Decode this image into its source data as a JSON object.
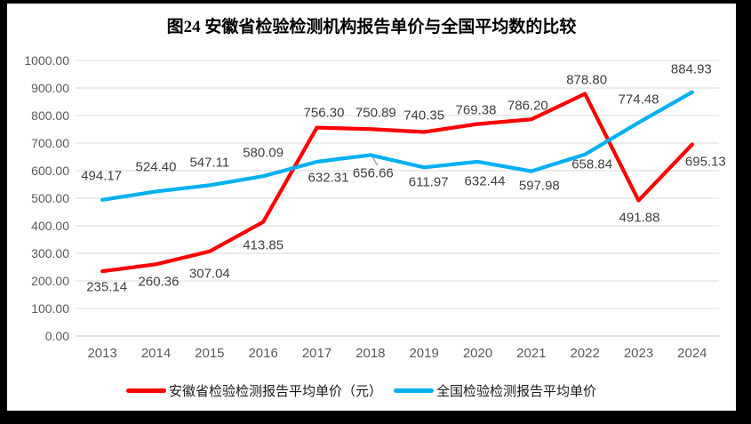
{
  "title": "图24 安徽省检验检测机构报告单价与全国平均数的比较",
  "chart_data": {
    "type": "line",
    "title": "图24 安徽省检验检测机构报告单价与全国平均数的比较",
    "categories": [
      "2013",
      "2014",
      "2015",
      "2016",
      "2017",
      "2018",
      "2019",
      "2020",
      "2021",
      "2022",
      "2023",
      "2024"
    ],
    "series": [
      {
        "name": "安徽省检验检测报告平均单价（元）",
        "color": "#FF0000",
        "values": [
          235.14,
          260.36,
          307.04,
          413.85,
          756.3,
          750.89,
          740.35,
          769.38,
          786.2,
          878.8,
          491.88,
          695.13
        ],
        "labels": [
          "235.14",
          "260.36",
          "307.04",
          "413.85",
          "756.30",
          "750.89",
          "740.35",
          "769.38",
          "786.20",
          "878.80",
          "491.88",
          "695.13"
        ]
      },
      {
        "name": "全国检验检测报告平均单价",
        "color": "#00B0F0",
        "values": [
          494.17,
          524.4,
          547.11,
          580.09,
          632.31,
          656.66,
          611.97,
          632.44,
          597.98,
          658.84,
          774.48,
          884.93
        ],
        "labels": [
          "494.17",
          "524.40",
          "547.11",
          "580.09",
          "632.31",
          "656.66",
          "611.97",
          "632.44",
          "597.98",
          "658.84",
          "774.48",
          "884.93"
        ]
      }
    ],
    "xlabel": "",
    "ylabel": "",
    "ylim": [
      0,
      1000
    ],
    "y_ticks": [
      0,
      100,
      200,
      300,
      400,
      500,
      600,
      700,
      800,
      900,
      1000
    ],
    "y_tick_labels": [
      "0.00",
      "100.00",
      "200.00",
      "300.00",
      "400.00",
      "500.00",
      "600.00",
      "700.00",
      "800.00",
      "900.00",
      "1000.00"
    ],
    "grid": true,
    "data_labels": true,
    "legend_position": "bottom",
    "colors": {
      "gridline": "#D9D9D9",
      "axis_line": "#BFBFBF",
      "axis_text": "#595959",
      "data_label_text": "#404040",
      "leader_line": "#A6A6A6"
    }
  }
}
